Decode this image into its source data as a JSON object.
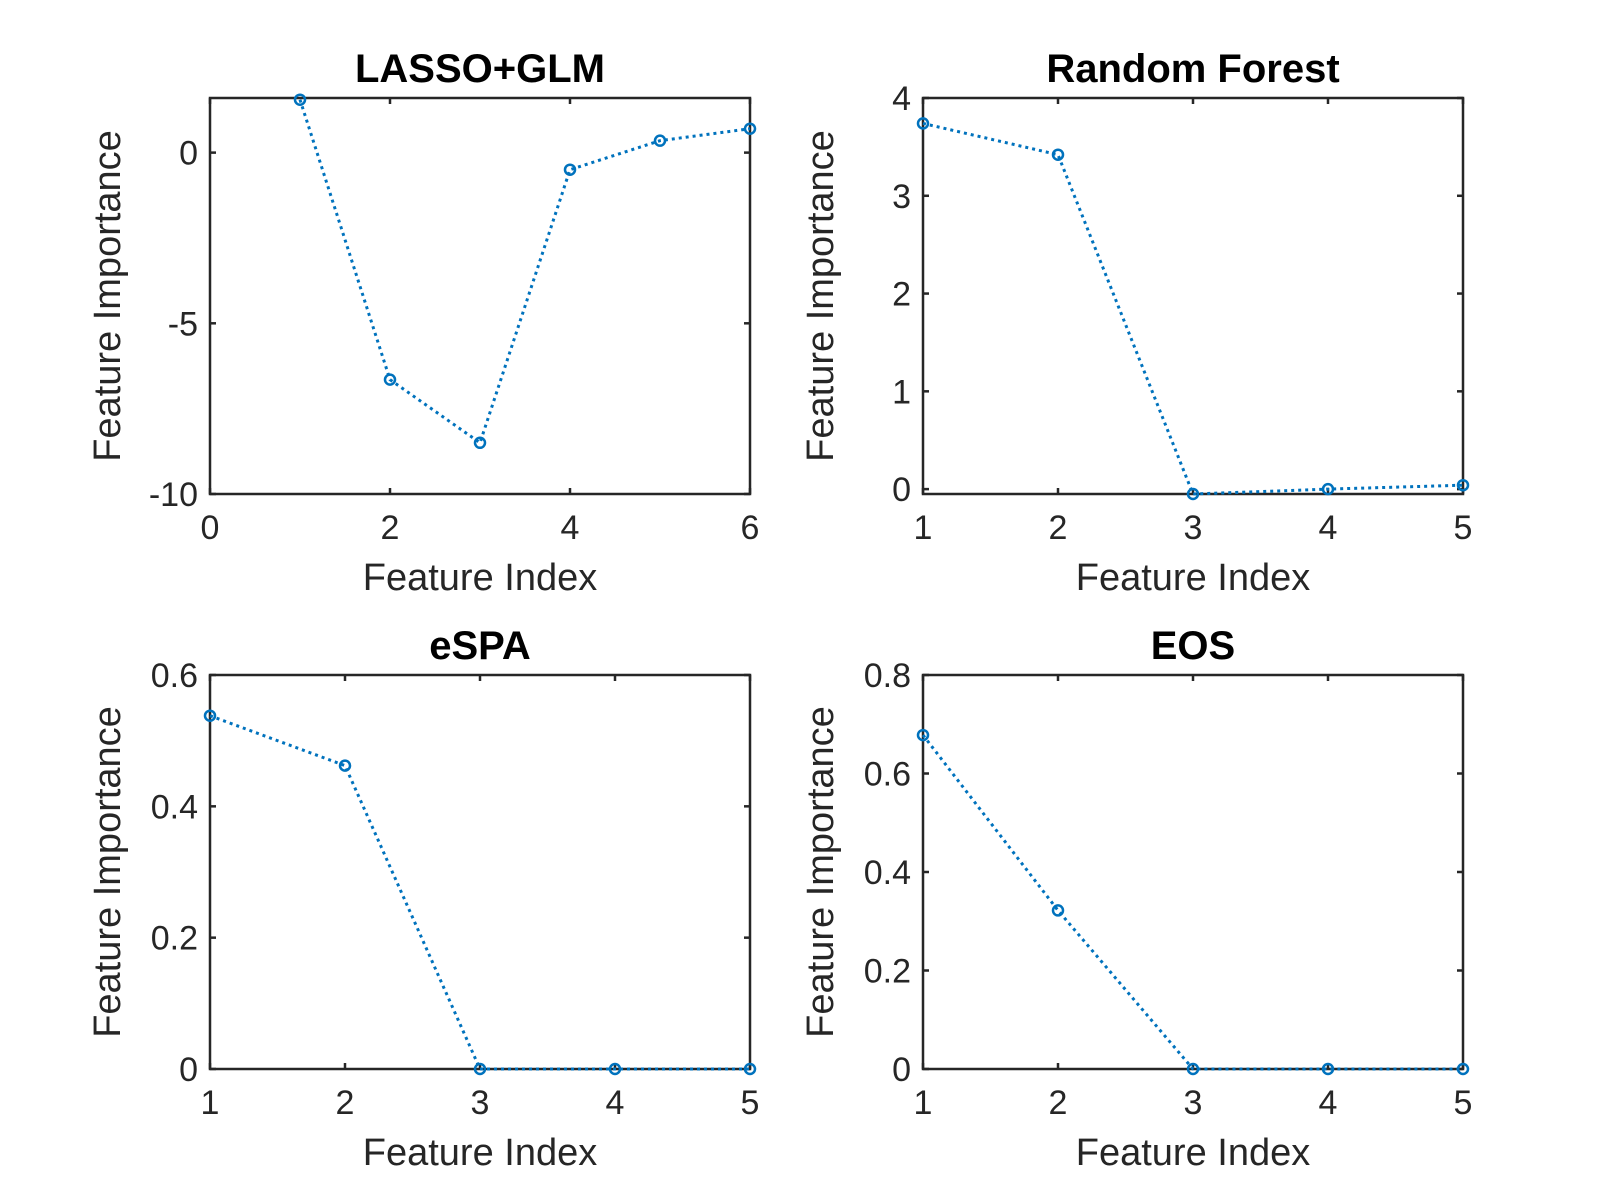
{
  "chart_data": [
    {
      "type": "line",
      "title": "LASSO+GLM",
      "xlabel": "Feature Index",
      "ylabel": "Feature Importance",
      "xlim": [
        0,
        6
      ],
      "ylim": [
        -10,
        1.6
      ],
      "xticks": [
        0,
        2,
        4,
        6
      ],
      "yticks": [
        -10,
        -5,
        0
      ],
      "ytick_labels": [
        "-10",
        "-5",
        "0"
      ],
      "x": [
        1,
        2,
        3,
        4,
        5,
        6
      ],
      "series": [
        {
          "values": [
            1.55,
            -6.65,
            -8.5,
            -0.5,
            0.35,
            0.7
          ]
        }
      ],
      "color": "#0072BD"
    },
    {
      "type": "line",
      "title": "Random Forest",
      "xlabel": "Feature Index",
      "ylabel": "Feature Importance",
      "xlim": [
        1,
        5
      ],
      "ylim": [
        -0.05,
        4
      ],
      "xticks": [
        1,
        2,
        3,
        4,
        5
      ],
      "yticks": [
        0,
        1,
        2,
        3,
        4
      ],
      "ytick_labels": [
        "0",
        "1",
        "2",
        "3",
        "4"
      ],
      "x": [
        1,
        2,
        3,
        4,
        5
      ],
      "series": [
        {
          "values": [
            3.74,
            3.42,
            -0.05,
            0.0,
            0.04
          ]
        }
      ],
      "color": "#0072BD"
    },
    {
      "type": "line",
      "title": "eSPA",
      "xlabel": "Feature Index",
      "ylabel": "Feature Importance",
      "xlim": [
        1,
        5
      ],
      "ylim": [
        0,
        0.6
      ],
      "xticks": [
        1,
        2,
        3,
        4,
        5
      ],
      "yticks": [
        0,
        0.2,
        0.4,
        0.6
      ],
      "ytick_labels": [
        "0",
        "0.2",
        "0.4",
        "0.6"
      ],
      "x": [
        1,
        2,
        3,
        4,
        5
      ],
      "series": [
        {
          "values": [
            0.538,
            0.462,
            0.0,
            0.0,
            0.0
          ]
        }
      ],
      "color": "#0072BD"
    },
    {
      "type": "line",
      "title": "EOS",
      "xlabel": "Feature Index",
      "ylabel": "Feature Importance",
      "xlim": [
        1,
        5
      ],
      "ylim": [
        0,
        0.8
      ],
      "xticks": [
        1,
        2,
        3,
        4,
        5
      ],
      "yticks": [
        0,
        0.2,
        0.4,
        0.6,
        0.8
      ],
      "ytick_labels": [
        "0",
        "0.2",
        "0.4",
        "0.6",
        "0.8"
      ],
      "x": [
        1,
        2,
        3,
        4,
        5
      ],
      "series": [
        {
          "values": [
            0.678,
            0.322,
            0.0,
            0.0,
            0.0
          ]
        }
      ],
      "color": "#0072BD"
    }
  ]
}
